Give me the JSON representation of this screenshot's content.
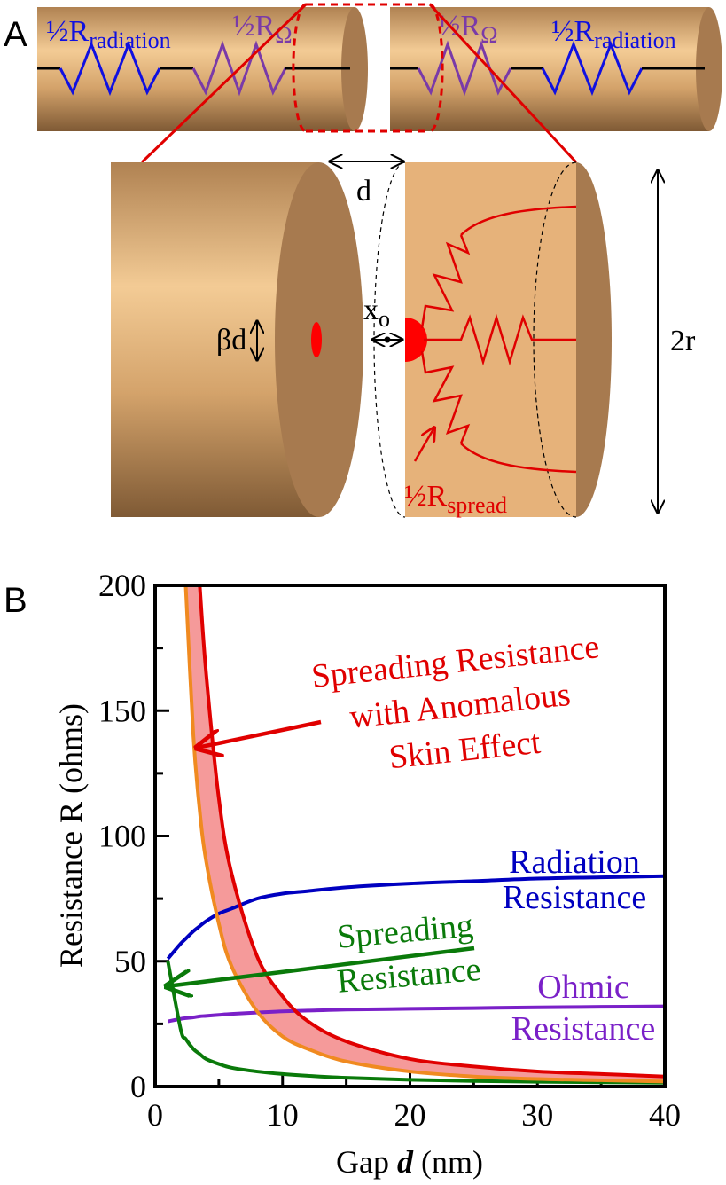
{
  "diagram": {
    "label": "A",
    "resistors": [
      {
        "main": "½R",
        "sub": "radiation"
      },
      {
        "main": "½R",
        "sub": "Ω"
      },
      {
        "main": "½R",
        "sub": "Ω"
      },
      {
        "main": "½R",
        "sub": "radiation"
      }
    ],
    "gap": "d",
    "spot": "βd",
    "distance": {
      "main": "x",
      "sub": "o"
    },
    "diameter": "2r",
    "spread": {
      "main": "½R",
      "sub": "spread"
    }
  },
  "chart_data": {
    "type": "line",
    "panel_label": "B",
    "xlabel": [
      "Gap ",
      "d",
      " (nm)"
    ],
    "ylabel": "Resistance R (ohms)",
    "xlim": [
      0,
      40
    ],
    "ylim": [
      0,
      200
    ],
    "xticks": [
      0,
      10,
      20,
      30,
      40
    ],
    "yticks": [
      0,
      50,
      100,
      150,
      200
    ],
    "xminorticks": [
      5,
      15,
      25,
      35
    ],
    "yminorticks": [
      25,
      75,
      125,
      175
    ],
    "x": [
      1,
      2,
      2.4,
      3,
      3.5,
      4,
      5,
      6,
      8,
      10,
      12,
      15,
      20,
      25,
      30,
      35,
      40
    ],
    "series": [
      {
        "color": "#0000c0",
        "values": [
          51,
          57,
          59,
          62,
          64,
          66,
          69,
          71,
          75,
          77,
          78,
          79.5,
          81,
          82,
          83,
          83.5,
          84
        ]
      },
      {
        "color": "#7a20c8",
        "values": [
          26,
          27,
          27.3,
          27.6,
          28,
          28.2,
          28.6,
          29,
          29.5,
          30,
          30.3,
          30.7,
          31,
          31.3,
          31.6,
          31.8,
          32
        ]
      },
      {
        "color": "#0a7a0a",
        "values": [
          50,
          23,
          19,
          15,
          13,
          11,
          9,
          7.5,
          6,
          5,
          4.3,
          3.5,
          2.7,
          2.2,
          1.9,
          1.7,
          1.5
        ]
      },
      {
        "color": "#f08a20",
        "values": [
          null,
          null,
          200,
          140,
          110,
          90,
          65,
          48,
          30,
          20,
          15,
          10,
          6,
          4,
          3,
          2.5,
          2
        ]
      },
      {
        "color": "#e00000",
        "values": [
          null,
          null,
          null,
          null,
          200,
          165,
          115,
          85,
          52,
          36,
          26,
          18,
          11,
          8,
          6,
          5,
          4
        ]
      }
    ],
    "band_fill": "#f59a9a",
    "annotations": [
      {
        "lines": [
          "Spreading Resistance",
          "with Anomalous",
          "Skin Effect"
        ],
        "color": "#e00000"
      },
      {
        "lines": [
          "Radiation",
          "Resistance"
        ],
        "color": "#0000c0"
      },
      {
        "lines": [
          "Spreading",
          "Resistance"
        ],
        "color": "#0a7a0a"
      },
      {
        "lines": [
          "Ohmic",
          "Resistance"
        ],
        "color": "#7a20c8"
      }
    ]
  }
}
